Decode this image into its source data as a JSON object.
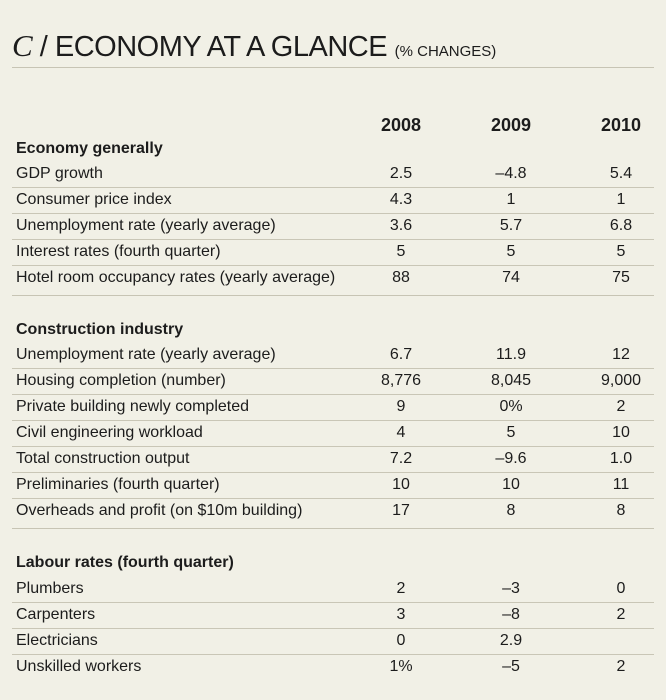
{
  "header": {
    "letter": "C",
    "slash": "/",
    "title": "ECONOMY AT A GLANCE",
    "subtitle": "(% CHANGES)"
  },
  "years": [
    "2008",
    "2009",
    "2010"
  ],
  "sections": [
    {
      "title": "Economy generally",
      "rows": [
        {
          "label": "GDP growth",
          "values": [
            "2.5",
            "–4.8",
            "5.4"
          ]
        },
        {
          "label": "Consumer price index",
          "values": [
            "4.3",
            "1",
            "1"
          ]
        },
        {
          "label": "Unemployment rate (yearly average)",
          "values": [
            "3.6",
            "5.7",
            "6.8"
          ]
        },
        {
          "label": "Interest rates (fourth quarter)",
          "values": [
            "5",
            "5",
            "5"
          ]
        },
        {
          "label": "Hotel room occupancy rates (yearly average)",
          "values": [
            "88",
            "74",
            "75"
          ]
        }
      ]
    },
    {
      "title": "Construction industry",
      "rows": [
        {
          "label": "Unemployment rate (yearly average)",
          "values": [
            "6.7",
            "11.9",
            "12"
          ]
        },
        {
          "label": "Housing completion (number)",
          "values": [
            "8,776",
            "8,045",
            "9,000"
          ]
        },
        {
          "label": "Private building newly completed",
          "values": [
            "9",
            "0%",
            "2"
          ]
        },
        {
          "label": "Civil engineering workload",
          "values": [
            "4",
            "5",
            "10"
          ]
        },
        {
          "label": "Total construction output",
          "values": [
            "7.2",
            "–9.6",
            "1.0"
          ]
        },
        {
          "label": "Preliminaries (fourth quarter)",
          "values": [
            "10",
            "10",
            "11"
          ]
        },
        {
          "label": "Overheads and profit (on $10m building)",
          "values": [
            "17",
            "8",
            "8"
          ]
        }
      ]
    },
    {
      "title": "Labour rates (fourth quarter)",
      "rows": [
        {
          "label": "Plumbers",
          "values": [
            "2",
            "–3",
            "0"
          ]
        },
        {
          "label": "Carpenters",
          "values": [
            "3",
            "–8",
            "2"
          ]
        },
        {
          "label": "Electricians",
          "values": [
            "0",
            "2.9",
            ""
          ]
        },
        {
          "label": "Unskilled workers",
          "values": [
            "1%",
            "–5",
            "2"
          ]
        }
      ]
    }
  ]
}
